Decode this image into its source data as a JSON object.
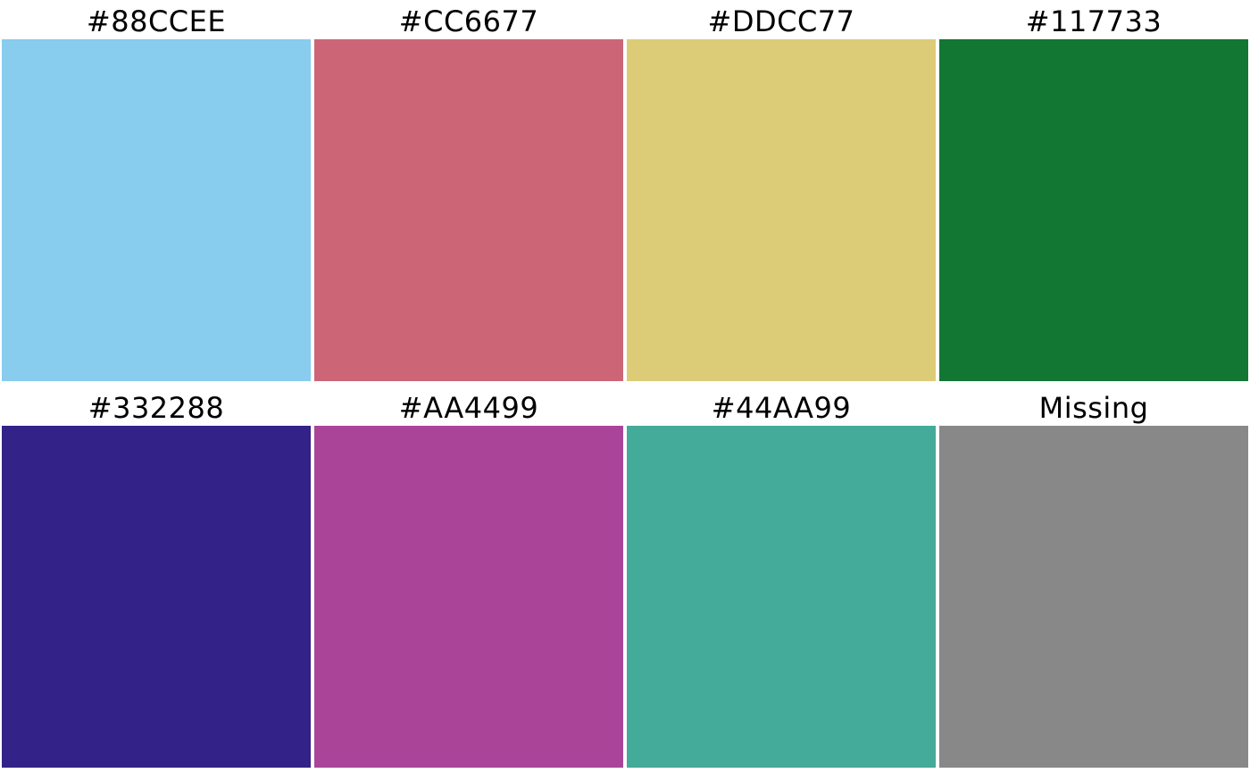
{
  "swatches": [
    {
      "label": "#88CCEE",
      "color": "#88CCEE"
    },
    {
      "label": "#CC6677",
      "color": "#CC6677"
    },
    {
      "label": "#DDCC77",
      "color": "#DDCC77"
    },
    {
      "label": "#117733",
      "color": "#117733"
    },
    {
      "label": "#332288",
      "color": "#332288"
    },
    {
      "label": "#AA4499",
      "color": "#AA4499"
    },
    {
      "label": "#44AA99",
      "color": "#44AA99"
    },
    {
      "label": "Missing",
      "color": "#888888"
    }
  ]
}
